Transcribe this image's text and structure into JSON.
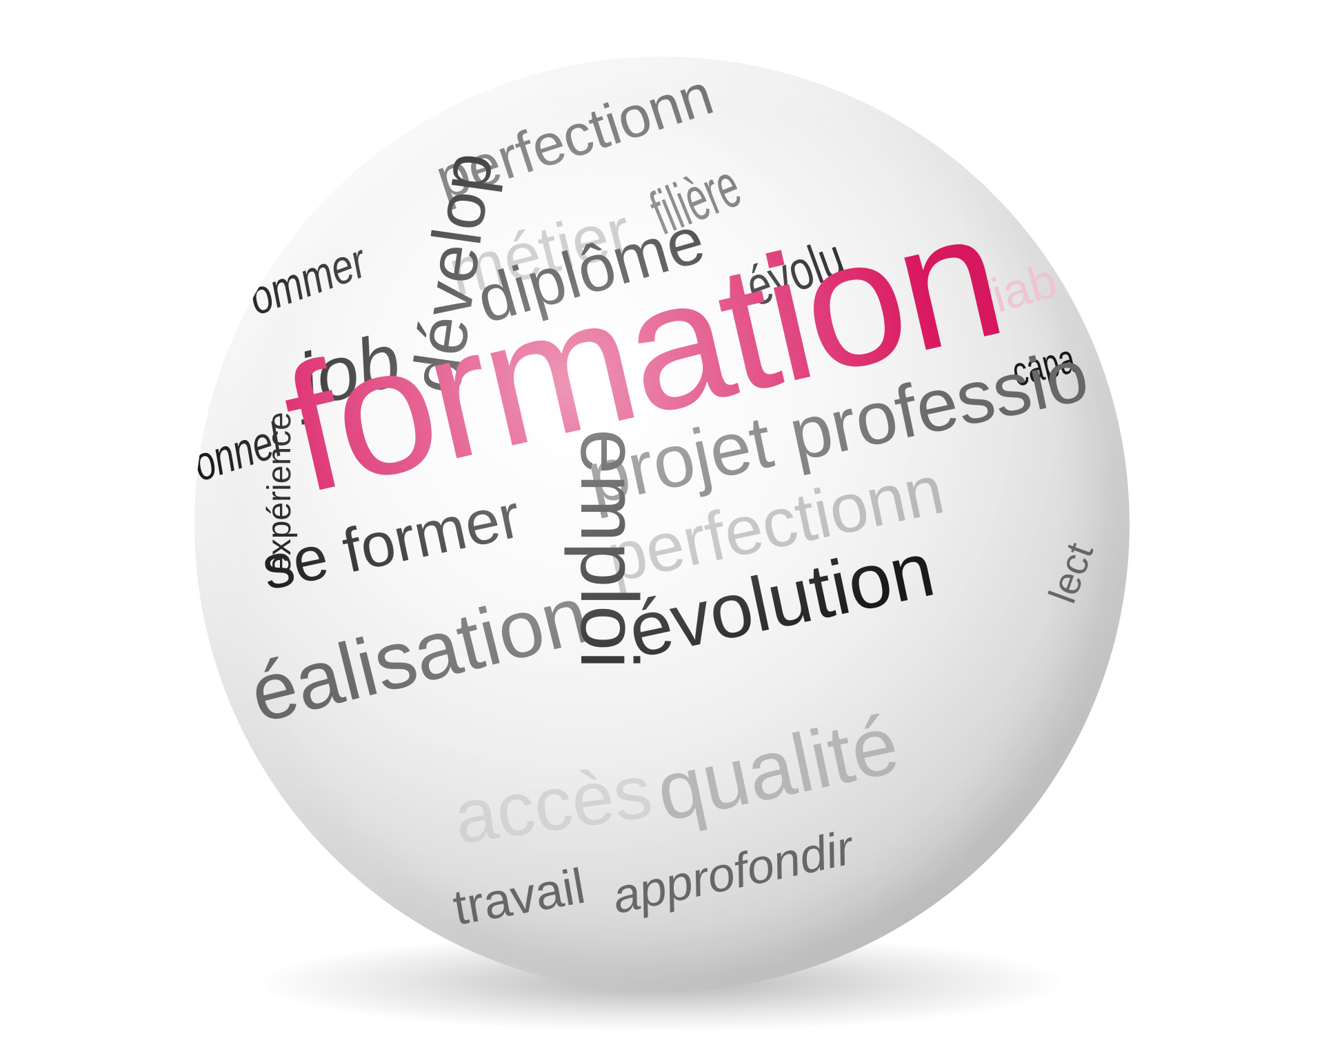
{
  "words": {
    "formation": "formation",
    "emploi": "emploi",
    "evolution": "évolution",
    "se_former": "se former",
    "job": "job",
    "diplome": "diplôme",
    "developpement": "dévelop",
    "projet_professionnel": "projet professio",
    "perfectionnement_lower": "perfectionn",
    "perfectionnement_upper": "perfectionn",
    "metier": "métier",
    "filiere": "filière",
    "evolution_top": "évolu",
    "competence_left": "ommer",
    "experience": "expérience",
    "personnel": "onnel",
    "realisation": "éalisation",
    "acces": "accès",
    "qualite": "qualité",
    "travail": "travail",
    "approfondir": "approfondir",
    "lecture": "lect",
    "capacite": "capa",
    "fiabilite": "fiab"
  },
  "colors": {
    "accent": "#d9175f",
    "text_dark": "#1a1a1a",
    "text_mid": "#6a6a6a",
    "text_light": "#b9b9b9"
  }
}
